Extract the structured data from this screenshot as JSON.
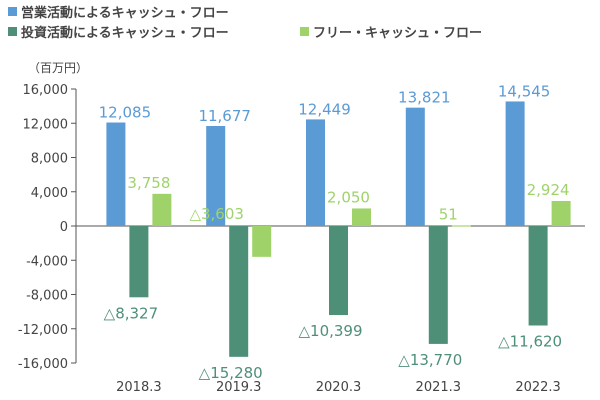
{
  "chart_data": {
    "type": "bar",
    "unit_label": "（百万円）",
    "categories": [
      "2018.3",
      "2019.3",
      "2020.3",
      "2021.3",
      "2022.3"
    ],
    "ylim": [
      -16000,
      16000
    ],
    "yticks": [
      16000,
      12000,
      8000,
      4000,
      0,
      -4000,
      -8000,
      -12000,
      -16000
    ],
    "ytick_labels": [
      "16,000",
      "12,000",
      "8,000",
      "4,000",
      "0",
      "-4,000",
      "-8,000",
      "-12,000",
      "-16,000"
    ],
    "grid": false,
    "legend_position": "top-left",
    "series": [
      {
        "name": "営業活動によるキャッシュ・フロー",
        "color": "#5b9bd5",
        "values": [
          12085,
          11677,
          12449,
          13821,
          14545
        ],
        "labels": [
          "12,085",
          "11,677",
          "12,449",
          "13,821",
          "14,545"
        ]
      },
      {
        "name": "投資活動によるキャッシュ・フロー",
        "color": "#4e8f78",
        "values": [
          -8327,
          -15280,
          -10399,
          -13770,
          -11620
        ],
        "labels": [
          "△8,327",
          "△15,280",
          "△10,399",
          "△13,770",
          "△11,620"
        ]
      },
      {
        "name": "フリー・キャッシュ・フロー",
        "color": "#9fd36a",
        "values": [
          3758,
          -3603,
          2050,
          51,
          2924
        ],
        "labels": [
          "3,758",
          "△3,603",
          "2,050",
          "51",
          "2,924"
        ]
      }
    ]
  }
}
